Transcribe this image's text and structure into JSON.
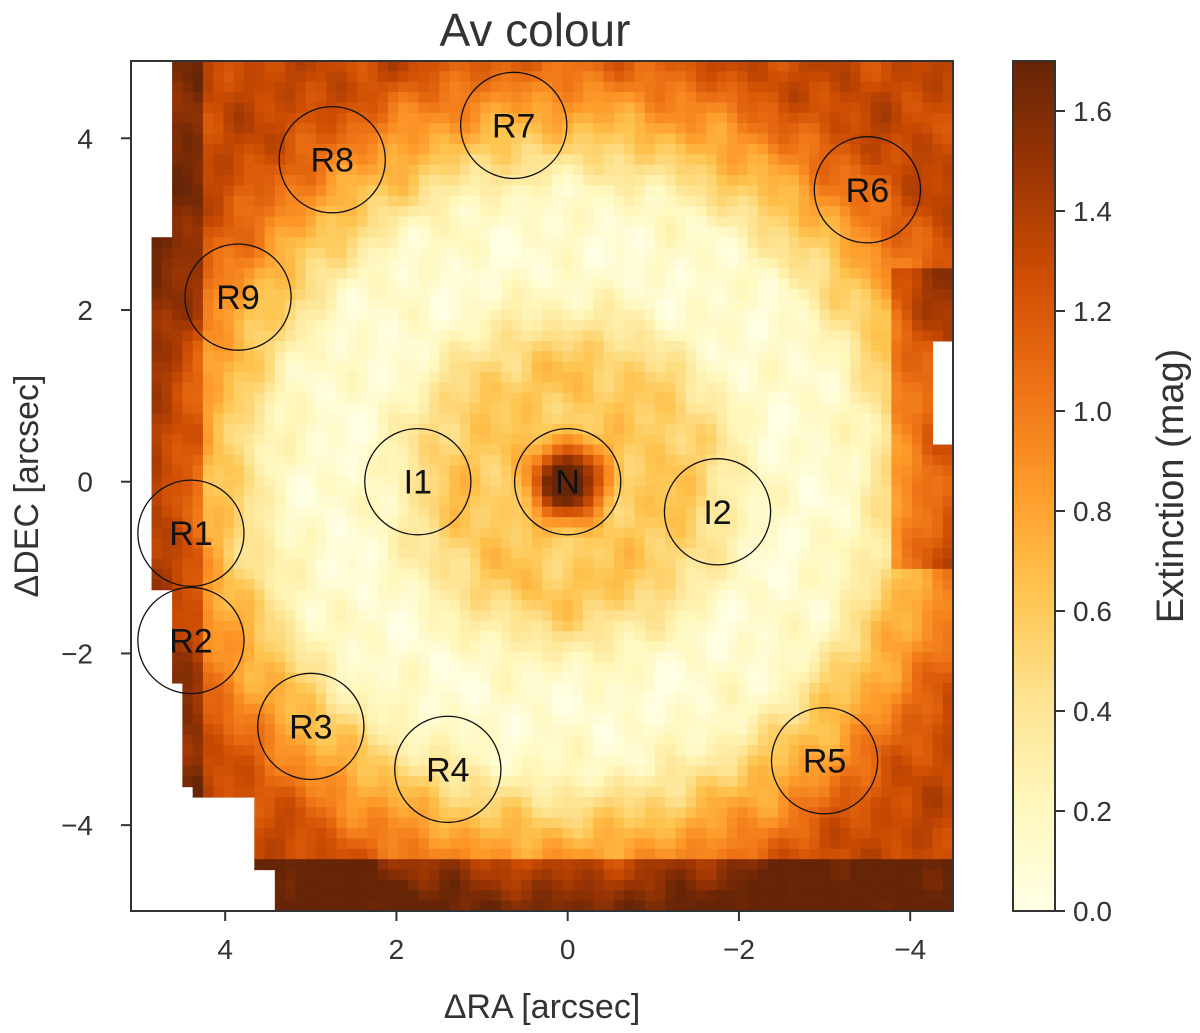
{
  "chart_data": {
    "type": "heatmap",
    "title": "Av colour",
    "xlabel": "ΔRA [arcsec]",
    "ylabel": "ΔDEC [arcsec]",
    "colorbar_label": "Extinction (mag)",
    "xlim": [
      5.1,
      -4.5
    ],
    "ylim": [
      -5.0,
      4.9
    ],
    "xticks": [
      4,
      2,
      0,
      -2,
      -4
    ],
    "xtick_labels": [
      "4",
      "2",
      "0",
      "−2",
      "−4"
    ],
    "yticks": [
      4,
      2,
      0,
      -2,
      -4
    ],
    "ytick_labels": [
      "4",
      "2",
      "0",
      "−2",
      "−4"
    ],
    "colorbar_range": [
      0.0,
      1.7
    ],
    "colorbar_ticks": [
      0.0,
      0.2,
      0.4,
      0.6,
      0.8,
      1.0,
      1.2,
      1.4,
      1.6
    ],
    "colorbar_tick_labels": [
      "0.0",
      "0.2",
      "0.4",
      "0.6",
      "0.8",
      "1.0",
      "1.2",
      "1.4",
      "1.6"
    ],
    "colormap": [
      "#ffffe5",
      "#fff7bc",
      "#fee391",
      "#fec44f",
      "#fe9929",
      "#ec7014",
      "#cc4c02",
      "#993404",
      "#662506"
    ],
    "pattern_description_values": {
      "nucleus_peak": 1.6,
      "inner_ring_min": 0.05,
      "outer_ring_level": 0.9,
      "edge_level": 1.2
    },
    "regions": [
      {
        "name": "N",
        "ra": 0.0,
        "dec": 0.0
      },
      {
        "name": "I1",
        "ra": 1.75,
        "dec": 0.0
      },
      {
        "name": "I2",
        "ra": -1.75,
        "dec": -0.35
      },
      {
        "name": "R1",
        "ra": 4.4,
        "dec": -0.6
      },
      {
        "name": "R2",
        "ra": 4.4,
        "dec": -1.85
      },
      {
        "name": "R3",
        "ra": 3.0,
        "dec": -2.85
      },
      {
        "name": "R4",
        "ra": 1.4,
        "dec": -3.35
      },
      {
        "name": "R5",
        "ra": -3.0,
        "dec": -3.25
      },
      {
        "name": "R6",
        "ra": -3.5,
        "dec": 3.4
      },
      {
        "name": "R7",
        "ra": 0.63,
        "dec": 4.15
      },
      {
        "name": "R8",
        "ra": 2.75,
        "dec": 3.75
      },
      {
        "name": "R9",
        "ra": 3.85,
        "dec": 2.15
      }
    ],
    "region_radius_arcsec": 0.62
  }
}
